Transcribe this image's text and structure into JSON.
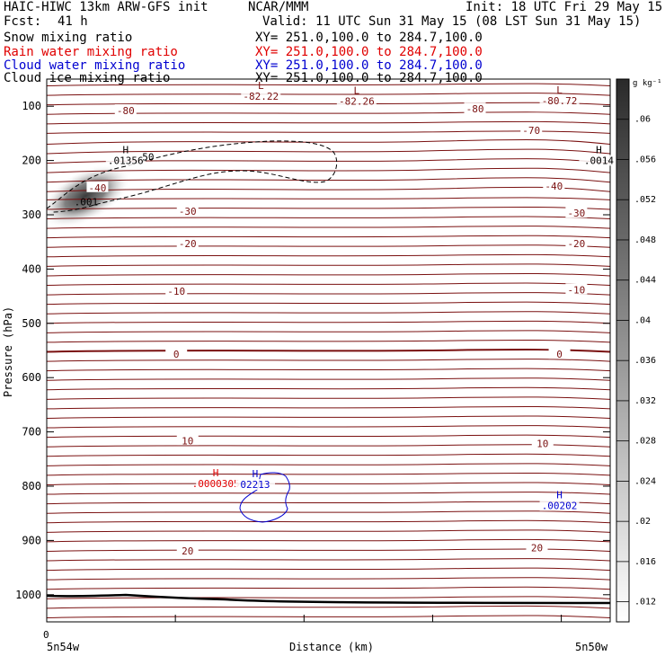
{
  "header": {
    "model": "HAIC-HIWC 13km ARW-GFS init",
    "agency": "NCAR/MMM",
    "init": "Init: 18 UTC Fri 29 May 15",
    "fcst_label": "Fcst:",
    "fcst_value": "41 h",
    "valid": "Valid: 11 UTC Sun 31 May 15 (08 LST Sun 31 May 15)"
  },
  "fields": [
    {
      "name": "Snow mixing ratio",
      "xy": "XY= 251.0,100.0 to 284.7,100.0",
      "color": "#000000"
    },
    {
      "name": "Rain water mixing ratio",
      "xy": "XY= 251.0,100.0 to 284.7,100.0",
      "color": "#e00000"
    },
    {
      "name": "Cloud water mixing ratio",
      "xy": "XY= 251.0,100.0 to 284.7,100.0",
      "color": "#0000d0"
    },
    {
      "name": "Cloud ice mixing ratio",
      "xy": "XY= 251.0,100.0 to 284.7,100.0",
      "color": "#000000"
    }
  ],
  "colors": {
    "temperature": "#7a1010",
    "rain": "#e00000",
    "cloud_water": "#0000d0",
    "ice": "#000000",
    "terrain": "#000000"
  },
  "chart_data": {
    "type": "contour",
    "ylabel": "Pressure (hPa)",
    "xlabel": "Distance (km)",
    "x_left_label": "5n54w",
    "x_right_label": "5n50w",
    "x_zero_label": "0",
    "ylim": [
      1050,
      50
    ],
    "y_ticks": [
      100,
      200,
      300,
      400,
      500,
      600,
      700,
      800,
      900,
      1000
    ],
    "colorbar": {
      "unit": "g kg⁻¹",
      "ticks": [
        ".06",
        ".056",
        ".052",
        ".048",
        ".044",
        ".04",
        ".036",
        ".032",
        ".028",
        ".024",
        ".02",
        ".016",
        ".012"
      ],
      "min": 0.01,
      "max": 0.064
    },
    "temperature_labels": [
      {
        "text": "-80",
        "x": 0.14,
        "p": 108
      },
      {
        "text": "-80",
        "x": 0.76,
        "p": 105
      },
      {
        "text": "-70",
        "x": 0.86,
        "p": 144
      },
      {
        "text": "-40",
        "x": 0.09,
        "p": 250
      },
      {
        "text": "-40",
        "x": 0.9,
        "p": 247
      },
      {
        "text": "-30",
        "x": 0.25,
        "p": 293
      },
      {
        "text": "-30",
        "x": 0.94,
        "p": 297
      },
      {
        "text": "-20",
        "x": 0.25,
        "p": 353
      },
      {
        "text": "-20",
        "x": 0.94,
        "p": 353
      },
      {
        "text": "-10",
        "x": 0.23,
        "p": 441
      },
      {
        "text": "-10",
        "x": 0.94,
        "p": 438
      },
      {
        "text": "0",
        "x": 0.23,
        "p": 557
      },
      {
        "text": "0",
        "x": 0.91,
        "p": 557
      },
      {
        "text": "10",
        "x": 0.25,
        "p": 716
      },
      {
        "text": "10",
        "x": 0.88,
        "p": 721
      },
      {
        "text": "20",
        "x": 0.25,
        "p": 919
      },
      {
        "text": "20",
        "x": 0.87,
        "p": 913
      }
    ],
    "extrema": [
      {
        "sym": "L",
        "label": "-82.22",
        "x": 0.38,
        "p": 85,
        "color": "#7a1010"
      },
      {
        "sym": "L",
        "label": "-82.26",
        "x": 0.55,
        "p": 94,
        "color": "#7a1010"
      },
      {
        "sym": "L",
        "label": "-80.72",
        "x": 0.91,
        "p": 93,
        "color": "#7a1010"
      },
      {
        "sym": "H",
        "label": ".01356",
        "x": 0.14,
        "p": 203,
        "color": "#000000"
      },
      {
        "sym": "H",
        "label": ".0014",
        "x": 0.98,
        "p": 203,
        "color": "#000000"
      },
      {
        "sym": "H",
        "label": ".0000305",
        "x": 0.3,
        "p": 798,
        "color": "#e00000"
      },
      {
        "sym": "H",
        "label": "02213",
        "x": 0.37,
        "p": 800,
        "color": "#0000d0"
      },
      {
        "sym": "H",
        "label": ".00202",
        "x": 0.91,
        "p": 839,
        "color": "#0000d0"
      }
    ],
    "contour_labels": [
      {
        "text": ".001",
        "x": 0.07,
        "p": 283,
        "color": "#000000"
      },
      {
        "text": "50",
        "x": 0.18,
        "p": 200,
        "color": "#000000"
      }
    ],
    "snow_max": {
      "value": 0.06,
      "x": 0.07,
      "p": 265
    }
  }
}
